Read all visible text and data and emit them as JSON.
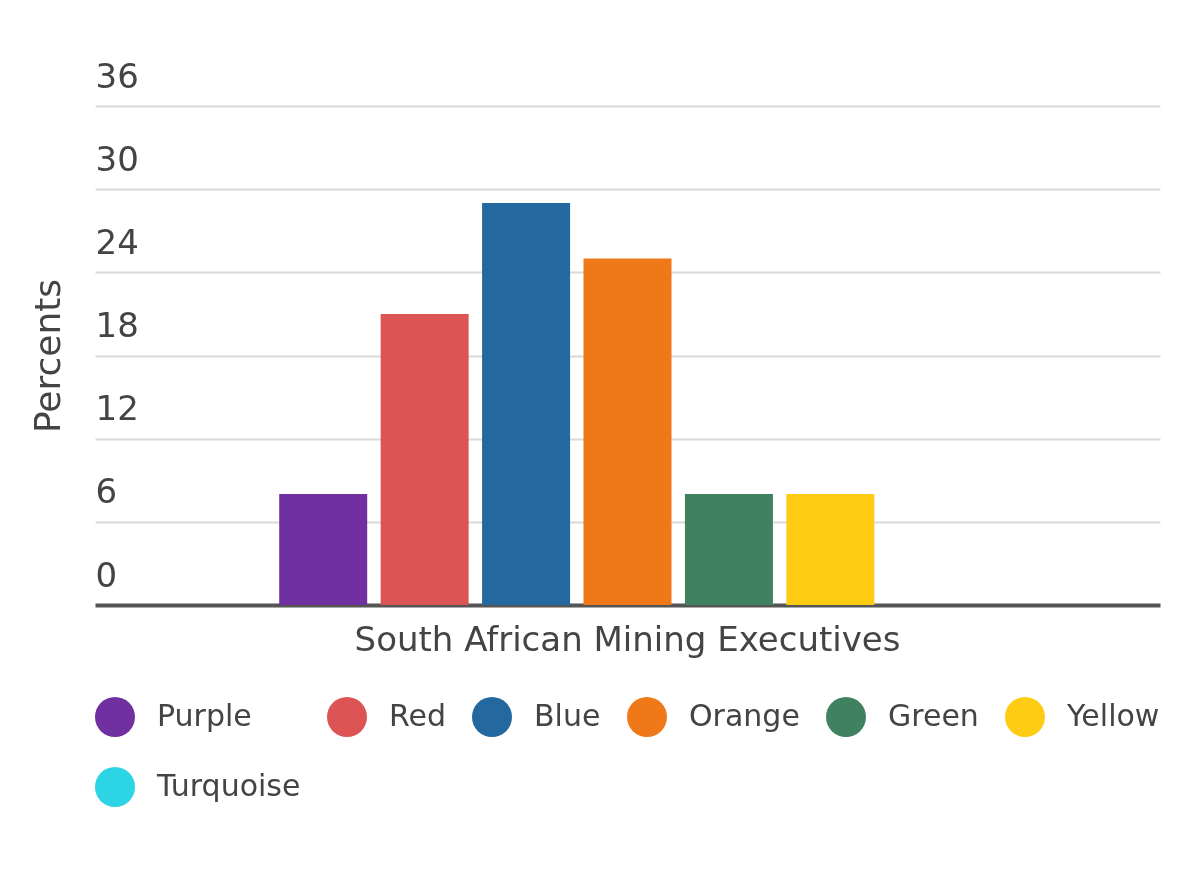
{
  "chart_data": {
    "type": "bar",
    "ylabel": "Percents",
    "categories": [
      "South African Mining Executives"
    ],
    "series": [
      {
        "name": "Purple",
        "color": "#7030a0",
        "values": [
          8
        ]
      },
      {
        "name": "Red",
        "color": "#dc5454",
        "values": [
          21
        ]
      },
      {
        "name": "Blue",
        "color": "#23689e",
        "values": [
          29
        ]
      },
      {
        "name": "Orange",
        "color": "#ef7918",
        "values": [
          25
        ]
      },
      {
        "name": "Green",
        "color": "#408160",
        "values": [
          8
        ]
      },
      {
        "name": "Yellow",
        "color": "#fecc13",
        "values": [
          8
        ]
      },
      {
        "name": "Turquoise",
        "color": "#2dd4e3",
        "values": [
          0
        ]
      }
    ],
    "ylim": [
      0,
      36
    ],
    "yticks": [
      0,
      6,
      12,
      18,
      24,
      30,
      36
    ],
    "grid": "y",
    "legend": "bottom"
  }
}
